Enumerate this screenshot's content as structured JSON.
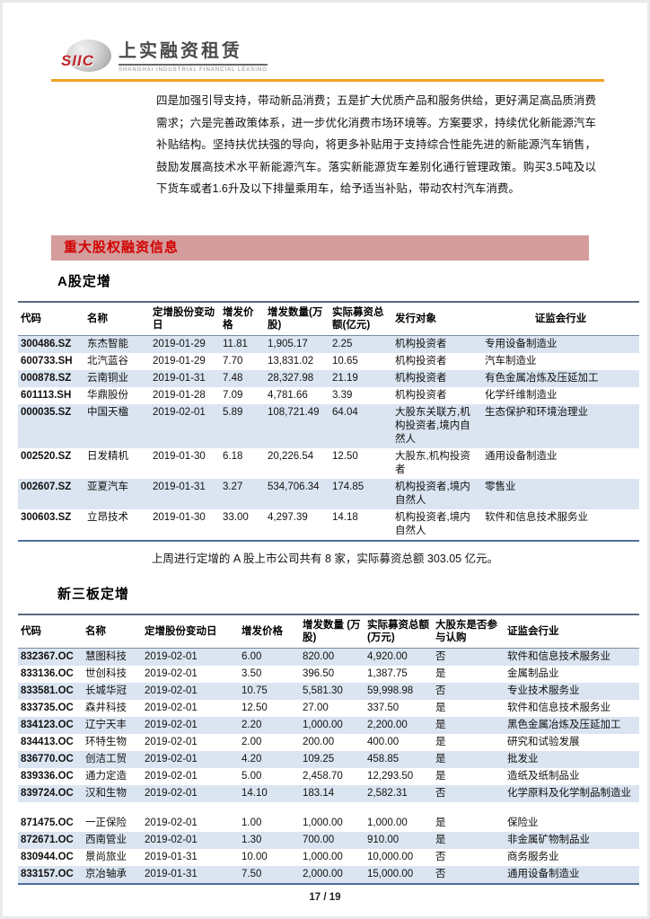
{
  "brand": {
    "siic": "SIIC",
    "name": "上实融资租赁",
    "subtitle": "SHANGHAI INDUSTRIAL FINANCIAL LEASING"
  },
  "intro": {
    "text": "四是加强引导支持，带动新品消费；五是扩大优质产品和服务供给，更好满足高品质消费需求；六是完善政策体系，进一步优化消费市场环境等。方案要求，持续优化新能源汽车补贴结构。坚持扶优扶强的导向，将更多补贴用于支持综合性能先进的新能源汽车销售，鼓励发展高技术水平新能源汽车。落实新能源货车差别化通行管理政策。购买3.5吨及以下货车或者1.6升及以下排量乘用车，给予适当补贴，带动农村汽车消费。"
  },
  "section": {
    "title": "重大股权融资信息"
  },
  "a_share": {
    "heading": "A股定增",
    "columns": [
      "代码",
      "名称",
      "定增股份变动日",
      "增发价格",
      "增发数量(万股)",
      "实际募资总额(亿元)",
      "发行对象",
      "证监会行业"
    ],
    "rows": [
      {
        "shaded": true,
        "cells": [
          "300486.SZ",
          "东杰智能",
          "2019-01-29",
          "11.81",
          "1,905.17",
          "2.25",
          "机构投资者",
          "专用设备制造业"
        ]
      },
      {
        "shaded": false,
        "cells": [
          "600733.SH",
          "北汽蓝谷",
          "2019-01-29",
          "7.70",
          "13,831.02",
          "10.65",
          "机构投资者",
          "汽车制造业"
        ]
      },
      {
        "shaded": true,
        "cells": [
          "000878.SZ",
          "云南铜业",
          "2019-01-31",
          "7.48",
          "28,327.98",
          "21.19",
          "机构投资者",
          "有色金属冶炼及压延加工"
        ]
      },
      {
        "shaded": false,
        "cells": [
          "601113.SH",
          "华鼎股份",
          "2019-01-28",
          "7.09",
          "4,781.66",
          "3.39",
          "机构投资者",
          "化学纤维制造业"
        ]
      },
      {
        "shaded": true,
        "cells": [
          "000035.SZ",
          "中国天楹",
          "2019-02-01",
          "5.89",
          "108,721.49",
          "64.04",
          "大股东关联方,机构投资者,境内自然人",
          "生态保护和环境治理业"
        ]
      },
      {
        "shaded": false,
        "cells": [
          "002520.SZ",
          "日发精机",
          "2019-01-30",
          "6.18",
          "20,226.54",
          "12.50",
          "大股东,机构投资者",
          "通用设备制造业"
        ]
      },
      {
        "shaded": true,
        "cells": [
          "002607.SZ",
          "亚夏汽车",
          "2019-01-31",
          "3.27",
          "534,706.34",
          "174.85",
          "机构投资者,境内自然人",
          "零售业"
        ]
      },
      {
        "shaded": false,
        "cells": [
          "300603.SZ",
          "立昂技术",
          "2019-01-30",
          "33.00",
          "4,297.39",
          "14.18",
          "机构投资者,境内自然人",
          "软件和信息技术服务业"
        ]
      }
    ],
    "summary": "上周进行定增的 A 股上市公司共有 8 家，实际募资总额 303.05 亿元。"
  },
  "neeq": {
    "heading": "新三板定增",
    "columns": [
      "代码",
      "名称",
      "定增股份变动日",
      "增发价格",
      "增发数量 (万股)",
      "实际募资总额(万元)",
      "大股东是否参与认购",
      "证监会行业"
    ],
    "rows": [
      {
        "shaded": true,
        "cells": [
          "832367.OC",
          "慧图科技",
          "2019-02-01",
          "6.00",
          "820.00",
          "4,920.00",
          "否",
          "软件和信息技术服务业"
        ]
      },
      {
        "shaded": false,
        "cells": [
          "833136.OC",
          "世创科技",
          "2019-02-01",
          "3.50",
          "396.50",
          "1,387.75",
          "是",
          "金属制品业"
        ]
      },
      {
        "shaded": true,
        "cells": [
          "833581.OC",
          "长城华冠",
          "2019-02-01",
          "10.75",
          "5,581.30",
          "59,998.98",
          "否",
          "专业技术服务业"
        ]
      },
      {
        "shaded": false,
        "cells": [
          "833735.OC",
          "森井科技",
          "2019-02-01",
          "12.50",
          "27.00",
          "337.50",
          "是",
          "软件和信息技术服务业"
        ]
      },
      {
        "shaded": true,
        "cells": [
          "834123.OC",
          "辽宁天丰",
          "2019-02-01",
          "2.20",
          "1,000.00",
          "2,200.00",
          "是",
          "黑色金属冶炼及压延加工"
        ]
      },
      {
        "shaded": false,
        "cells": [
          "834413.OC",
          "环特生物",
          "2019-02-01",
          "2.00",
          "200.00",
          "400.00",
          "是",
          "研究和试验发展"
        ]
      },
      {
        "shaded": true,
        "cells": [
          "836770.OC",
          "创洁工贸",
          "2019-02-01",
          "4.20",
          "109.25",
          "458.85",
          "是",
          "批发业"
        ]
      },
      {
        "shaded": false,
        "cells": [
          "839336.OC",
          "通力定造",
          "2019-02-01",
          "5.00",
          "2,458.70",
          "12,293.50",
          "是",
          "造纸及纸制品业"
        ]
      },
      {
        "shaded": true,
        "cells": [
          "839724.OC",
          "汉和生物",
          "2019-02-01",
          "14.10",
          "183.14",
          "2,582.31",
          "否",
          "化学原料及化学制品制造业"
        ]
      },
      {
        "shaded": false,
        "spacer": true,
        "cells": [
          "",
          "",
          "",
          "",
          "",
          "",
          "",
          ""
        ]
      },
      {
        "shaded": false,
        "cells": [
          "871475.OC",
          "一正保险",
          "2019-02-01",
          "1.00",
          "1,000.00",
          "1,000.00",
          "是",
          "保险业"
        ]
      },
      {
        "shaded": true,
        "cells": [
          "872671.OC",
          "西南管业",
          "2019-02-01",
          "1.30",
          "700.00",
          "910.00",
          "是",
          "非金属矿物制品业"
        ]
      },
      {
        "shaded": false,
        "cells": [
          "830944.OC",
          "景尚旅业",
          "2019-01-31",
          "10.00",
          "1,000.00",
          "10,000.00",
          "否",
          "商务服务业"
        ]
      },
      {
        "shaded": true,
        "cells": [
          "833157.OC",
          "京冶轴承",
          "2019-01-31",
          "7.50",
          "2,000.00",
          "15,000.00",
          "否",
          "通用设备制造业"
        ]
      }
    ]
  },
  "footer": {
    "page_number": "17 / 19"
  },
  "colors": {
    "accent_red": "#d20000",
    "section_bar_bg": "#d49c9c",
    "row_shading": "#dbe5f1",
    "table_border_blue": "#4f6e9e",
    "header_rule_orange": "#f0a125"
  }
}
